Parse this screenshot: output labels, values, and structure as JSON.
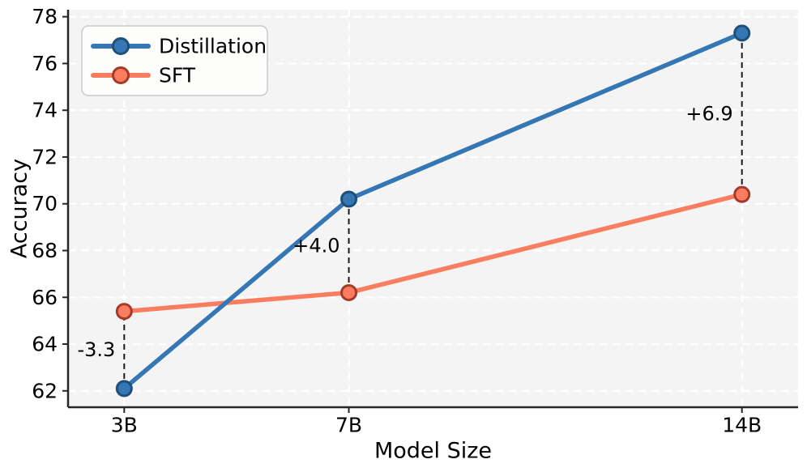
{
  "chart_data": {
    "type": "line",
    "title": "",
    "xlabel": "Model Size",
    "ylabel": "Accuracy",
    "categories": [
      "3B",
      "7B",
      "14B"
    ],
    "x": [
      3,
      7,
      14
    ],
    "series": [
      {
        "name": "Distillation",
        "values": [
          62.1,
          70.2,
          77.3
        ],
        "color": "#3577B5",
        "marker_edge": "#1F4E79"
      },
      {
        "name": "SFT",
        "values": [
          65.4,
          66.2,
          70.4
        ],
        "color": "#FA7D60",
        "marker_edge": "#A53A28"
      }
    ],
    "annotations": [
      {
        "x": 3,
        "label": "-3.3"
      },
      {
        "x": 7,
        "label": "+4.0"
      },
      {
        "x": 14,
        "label": "+6.9"
      }
    ],
    "yticks": [
      62,
      64,
      66,
      68,
      70,
      72,
      74,
      76,
      78
    ],
    "ylim": [
      61.3,
      78.3
    ],
    "xlim": [
      2.0,
      15.0
    ],
    "grid": true,
    "legend_position": "upper left",
    "colors": {
      "plot_bg": "#F4F4F4",
      "grid": "#FFFFFF",
      "spine": "#262626",
      "text": "#000000",
      "annotation_line": "#1A1A1A",
      "legend_bg": "#FEFEFD",
      "legend_border": "#C9C9C9"
    }
  }
}
